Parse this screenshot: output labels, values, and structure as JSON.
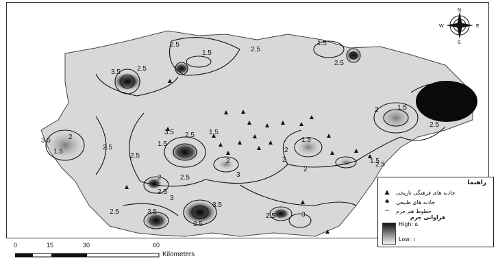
{
  "legend": {
    "title": "راهنما",
    "items": [
      {
        "label": "جاذبه های فرهنگی تاریخی",
        "icon": "triangle-icon"
      },
      {
        "label": "جاذبه های طبیعی",
        "icon": "tree-icon"
      },
      {
        "label": "خطوط هم جرم",
        "icon": "line-icon"
      }
    ],
    "ramp_title": "فراوانی جرم",
    "high_label": "High: ۵",
    "low_label": "Low: ۱"
  },
  "scale_bar": {
    "ticks": [
      "0",
      "15",
      "30",
      "60"
    ],
    "units": "Kilometers"
  },
  "compass": {
    "n": "N",
    "s": "S",
    "e": "E",
    "w": "W"
  },
  "contours": [
    "2.5",
    "1.5",
    "2.5",
    "3.5",
    "2.5",
    "1.5",
    "3.5",
    "2.5",
    "2",
    "1.5",
    "2.5",
    "2",
    "3.5",
    "1.5",
    "2.5",
    "3.5",
    "1.5",
    "1.5",
    "2",
    "2.5",
    "2",
    "1.5",
    "2",
    "2.5",
    "2",
    "2",
    "3.5",
    "2.5",
    "3",
    "2.5",
    "3.5",
    "2.5",
    "3",
    "2.5",
    "3",
    "2.5",
    "1.5",
    "2.5"
  ]
}
